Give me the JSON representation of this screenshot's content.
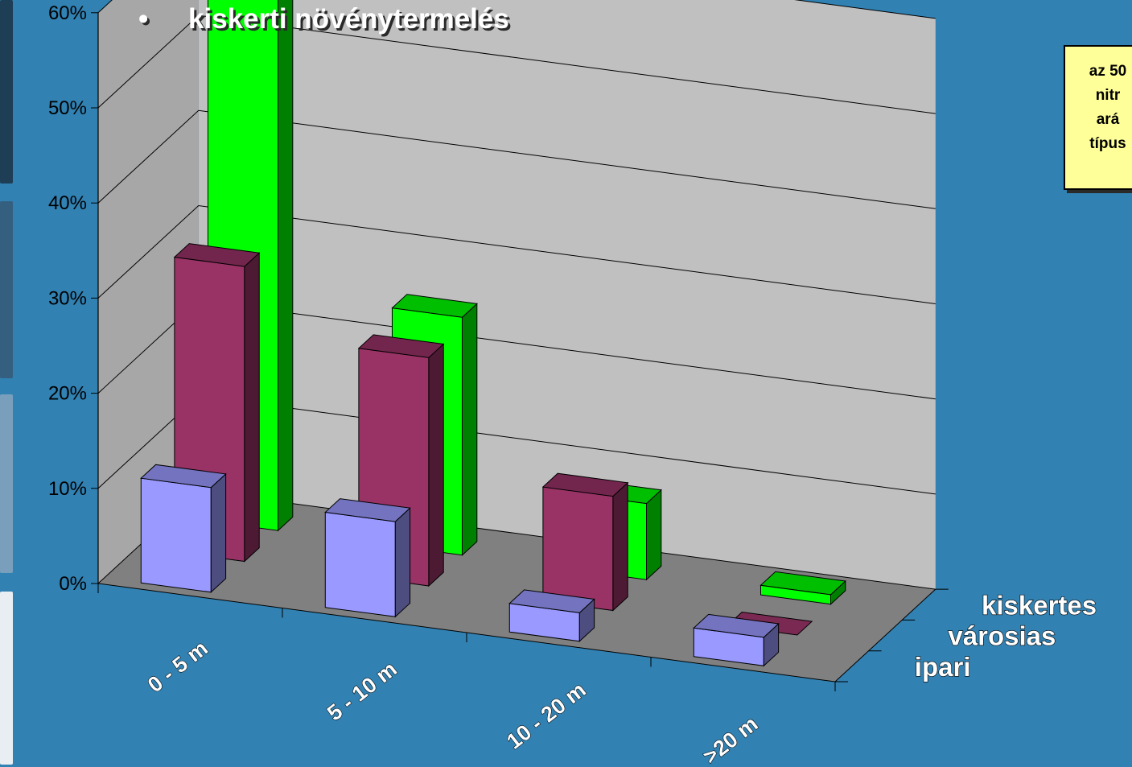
{
  "heading": {
    "bullet": "•",
    "text": "kiskerti növénytermelés"
  },
  "note": {
    "lines": [
      "az 50",
      "nitr",
      "ará",
      "típus"
    ]
  },
  "colors": {
    "background": "#3181b2",
    "floor": "#808080",
    "back_wall": "#c0c0c0",
    "side_wall": "#a7a7a7",
    "ipari": "#9999ff",
    "varosias": "#993366",
    "kiskertes": "#00ff00",
    "note_background": "#ffff99"
  },
  "chart_data": {
    "type": "bar",
    "subtype": "3d-column",
    "categories": [
      "0 - 5 m",
      "5 - 10 m",
      "10 - 20 m",
      ">20 m"
    ],
    "series": [
      {
        "name": "ipari",
        "values": [
          11,
          10,
          3,
          3
        ]
      },
      {
        "name": "városias",
        "values": [
          31,
          24,
          12,
          0
        ]
      },
      {
        "name": "kiskertes",
        "values": [
          58,
          25,
          8,
          1
        ]
      }
    ],
    "ylim": [
      0,
      60
    ],
    "yticks": [
      "0%",
      "10%",
      "20%",
      "30%",
      "40%",
      "50%",
      "60%"
    ],
    "grid": true,
    "xlabel": "",
    "ylabel": ""
  }
}
